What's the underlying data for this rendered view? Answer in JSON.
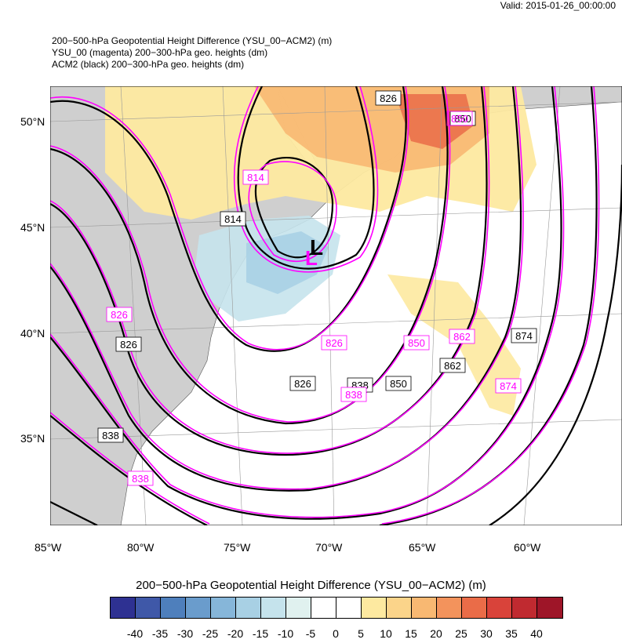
{
  "valid": "Valid: 2015-01-26_00:00:00",
  "titles": [
    "200−500-hPa Geopotential Height Difference (YSU_00−ACM2)   (m)",
    "YSU_00 (magenta) 200−300-hPa geo. heights   (dm)",
    "ACM2 (black) 200−300-hPa geo. heights   (dm)"
  ],
  "lat_labels": [
    "50°N",
    "45°N",
    "40°N",
    "35°N"
  ],
  "lon_labels": [
    "85°W",
    "80°W",
    "75°W",
    "70°W",
    "65°W",
    "60°W"
  ],
  "contour_labels": {
    "black": [
      "826",
      "850",
      "814",
      "826",
      "826",
      "838",
      "850",
      "862",
      "874",
      "838"
    ],
    "magenta": [
      "814",
      "850",
      "826",
      "826",
      "850",
      "862",
      "838",
      "874",
      "838"
    ]
  },
  "low_marker": "L",
  "colorbar": {
    "title": "200−500-hPa Geopotential Height Difference (YSU_00−ACM2)  (m)",
    "labels": [
      "-40",
      "-35",
      "-30",
      "-25",
      "-20",
      "-15",
      "-10",
      "-5",
      "0",
      "5",
      "10",
      "15",
      "20",
      "25",
      "30",
      "35",
      "40"
    ],
    "colors": [
      "#2e3192",
      "#3f58a8",
      "#4e7fbc",
      "#6a9ccc",
      "#86b6d9",
      "#a8d0e4",
      "#c5e3ec",
      "#e0f1ef",
      "#ffffff",
      "#ffffff",
      "#fde9a0",
      "#fbd48a",
      "#f8b872",
      "#f3935c",
      "#ea6c48",
      "#d9433a",
      "#c02a30",
      "#9e1528"
    ]
  },
  "colors": {
    "land": "#cfcfcf",
    "positive": "#fbd48a",
    "negative": "#c5e3ec",
    "ysu": "#ff00ff",
    "acm2": "#000000"
  }
}
